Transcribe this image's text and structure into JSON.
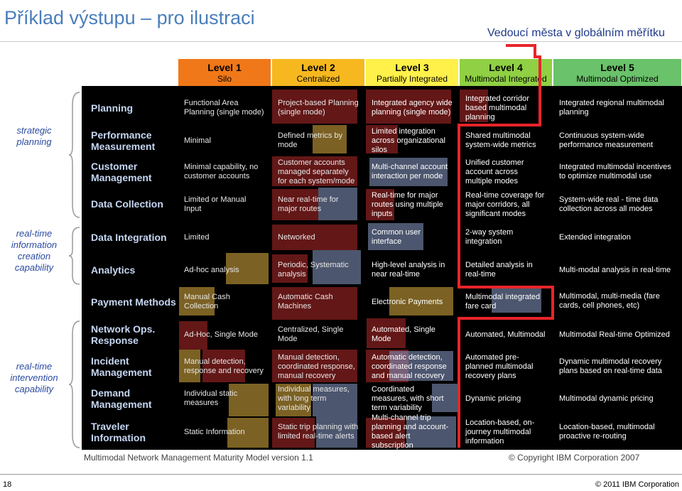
{
  "title": "Příklad výstupu – pro ilustraci",
  "subtitle": "Vedoucí města v globálním měřítku",
  "levels": [
    {
      "label": "Level 1",
      "sub": "Silo",
      "color": "#f07818"
    },
    {
      "label": "Level 2",
      "sub": "Centralized",
      "color": "#f6b81e"
    },
    {
      "label": "Level 3",
      "sub": "Partially Integrated",
      "color": "#fff04a"
    },
    {
      "label": "Level 4",
      "sub": "Multimodal Integrated",
      "color": "#8fd044"
    },
    {
      "label": "Level 5",
      "sub": "Multimodal Optimized",
      "color": "#6ac26a"
    }
  ],
  "groups": [
    {
      "label": "strategic planning"
    },
    {
      "label": "real-time information creation capability"
    },
    {
      "label": "real-time intervention capability"
    }
  ],
  "rows": [
    {
      "label": "Planning",
      "cells": [
        "Functional Area Planning (single mode)",
        "Project-based Planning (single mode)",
        "Integrated agency wide planning (single mode)",
        "Integrated corridor based multimodal planning",
        "Integrated regional multimodal planning"
      ]
    },
    {
      "label": "Performance Measurement",
      "cells": [
        "Minimal",
        "Defined metrics by mode",
        "Limited integration across organizational silos",
        "Shared multimodal system-wide metrics",
        "Continuous system-wide performance measurement"
      ]
    },
    {
      "label": "Customer Management",
      "cells": [
        "Minimal capability, no customer accounts",
        "Customer accounts managed separately for each system/mode",
        "Multi-channel account interaction per mode",
        "Unified customer account across multiple modes",
        "Integrated multimodal incentives to optimize multimodal use"
      ]
    },
    {
      "label": "Data Collection",
      "cells": [
        "Limited or Manual Input",
        "Near real-time for major routes",
        "Real-time for major routes using multiple inputs",
        "Real-time coverage for major corridors, all significant modes",
        "System-wide real - time data collection across all modes"
      ]
    },
    {
      "label": "Data Integration",
      "cells": [
        "Limited",
        "Networked",
        "Common user interface",
        "2-way system integration",
        "Extended integration"
      ]
    },
    {
      "label": "Analytics",
      "cells": [
        "Ad-hoc analysis",
        "Periodic, Systematic analysis",
        "High-level analysis in near real-time",
        "Detailed analysis in real-time",
        "Multi-modal analysis in real-time"
      ]
    },
    {
      "label": "Payment Methods",
      "cells": [
        "Manual Cash Collection",
        "Automatic Cash Machines",
        "Electronic Payments",
        "Multimodal integrated fare card",
        "Multimodal, multi-media (fare cards, cell phones, etc)"
      ]
    },
    {
      "label": "Network Ops. Response",
      "cells": [
        "Ad-Hoc, Single Mode",
        "Centralized, Single Mode",
        "Automated, Single Mode",
        "Automated, Multimodal",
        "Multimodal Real-time Optimized"
      ]
    },
    {
      "label": "Incident Management",
      "cells": [
        "Manual detection, response and recovery",
        "Manual detection, coordinated response, manual recovery",
        "Automatic detection, coordinated response and manual recovery",
        "Automated pre-planned multimodal recovery plans",
        "Dynamic multimodal recovery plans based on real-time data"
      ]
    },
    {
      "label": "Demand Management",
      "cells": [
        "Individual static measures",
        "Individual measures, with long term variability",
        "Coordinated measures, with short term variability",
        "Dynamic pricing",
        "Multimodal dynamic pricing"
      ]
    },
    {
      "label": "Traveler Information",
      "cells": [
        "Static Information",
        "Static trip planning with limited real-time alerts",
        "Multi-channel trip planning and account-based alert subscription",
        "Location-based, on-journey multimodal information",
        "Location-based, multimodal proactive re-routing"
      ]
    }
  ],
  "footer": {
    "left": "Multimodal Network Management Maturity Model version 1.1",
    "right": "© Copyright IBM Corporation 2007",
    "page_number": "18",
    "copyright": "© 2011 IBM Corporation"
  },
  "colors": {
    "title": "#4a7ebb",
    "panel": "#000000",
    "row_label": "#c5d6f2",
    "maturity_line": "#e8242a",
    "overlay_red": "#b52a2a",
    "overlay_yellow": "#e0b040",
    "overlay_blue": "#8a9cc8"
  }
}
